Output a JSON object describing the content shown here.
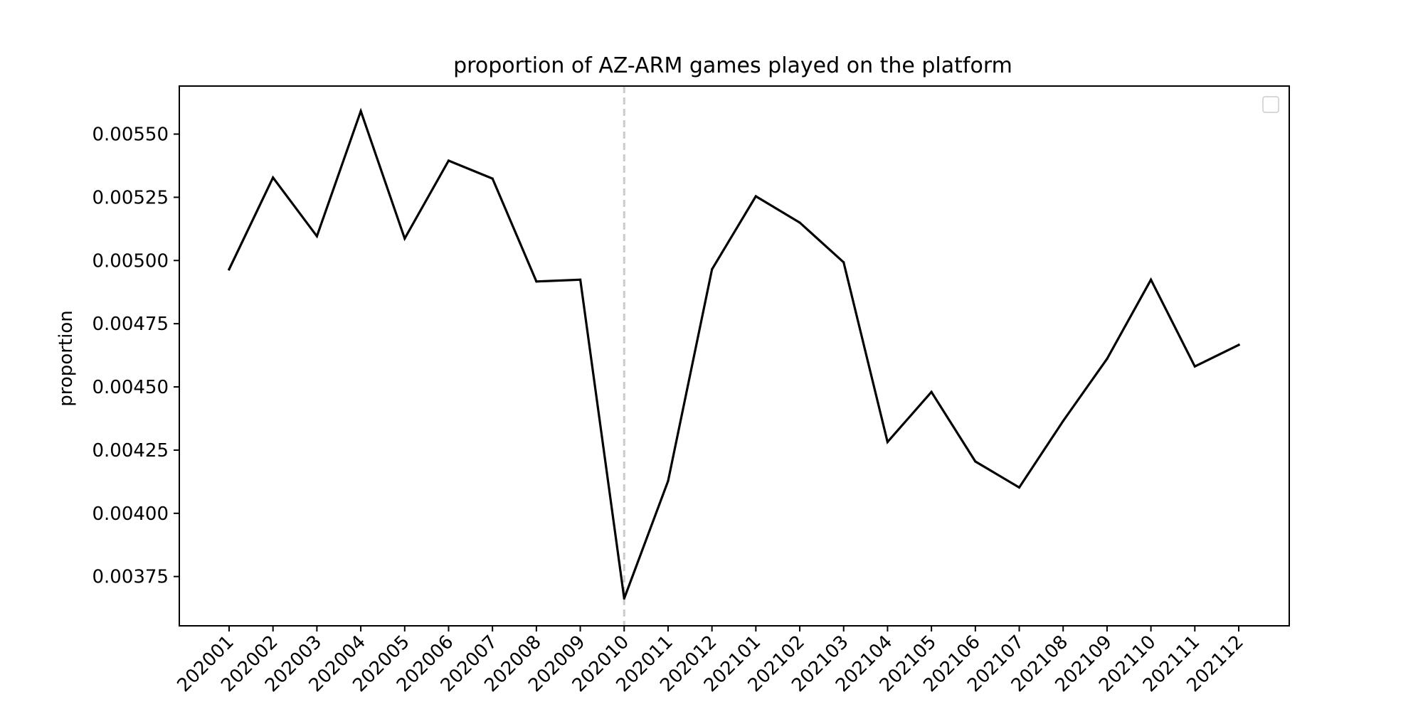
{
  "chart_data": {
    "type": "line",
    "title": "proportion of AZ-ARM games played on the platform",
    "xlabel": "",
    "ylabel": "proportion",
    "categories": [
      "202001",
      "202002",
      "202003",
      "202004",
      "202005",
      "202006",
      "202007",
      "202008",
      "202009",
      "202010",
      "202011",
      "202012",
      "202101",
      "202102",
      "202103",
      "202104",
      "202105",
      "202106",
      "202107",
      "202108",
      "202109",
      "202110",
      "202111",
      "202112"
    ],
    "series": [
      {
        "values": [
          0.004965,
          0.005328,
          0.005096,
          0.005591,
          0.005087,
          0.005395,
          0.005324,
          0.004917,
          0.004924,
          0.003663,
          0.004128,
          0.004965,
          0.005254,
          0.00515,
          0.004993,
          0.004282,
          0.00448,
          0.004205,
          0.004102,
          0.004365,
          0.004611,
          0.004924,
          0.004581,
          0.004666
        ],
        "color": "#000000"
      }
    ],
    "ylim": [
      0.003555,
      0.00569
    ],
    "yticks": [
      0.00375,
      0.004,
      0.00425,
      0.0045,
      0.00475,
      0.005,
      0.00525,
      0.0055
    ],
    "ytick_labels": [
      "0.00375",
      "0.00400",
      "0.00425",
      "0.00450",
      "0.00475",
      "0.00500",
      "0.00525",
      "0.00550"
    ],
    "reference_line": {
      "category": "202010",
      "style": "dashed",
      "color": "#cccccc"
    },
    "legend": {
      "position": "upper right",
      "entries": []
    },
    "grid": false
  }
}
